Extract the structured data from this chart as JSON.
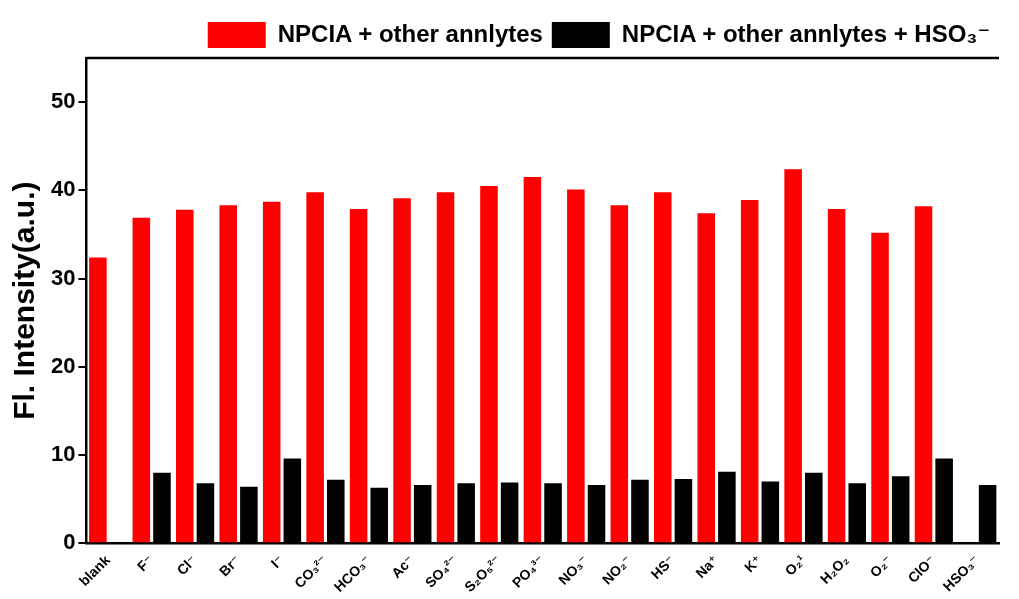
{
  "chart_data": {
    "type": "bar",
    "ylabel": "Fl. Intensity(a.u.)",
    "categories": [
      "blank",
      "F⁻",
      "Cl⁻",
      "Br⁻",
      "I⁻",
      "CO₃²⁻",
      "HCO₃⁻",
      "Ac⁻",
      "SO₄²⁻",
      "S₂O₅²⁻",
      "PO₄³⁻",
      "NO₃⁻",
      "NO₂⁻",
      "HS⁻",
      "Na⁺",
      "K⁺",
      "O₂¹",
      "H₂O₂",
      "O₂⁻",
      "ClO⁻",
      "HSO₃⁻"
    ],
    "series": [
      {
        "name": "NPCIA + other annlytes",
        "color": "#ff0000",
        "values": [
          32.4,
          36.9,
          37.8,
          38.3,
          38.7,
          39.8,
          37.9,
          39.1,
          39.8,
          40.5,
          41.5,
          40.1,
          38.3,
          39.8,
          37.4,
          38.9,
          42.4,
          37.9,
          35.2,
          38.2,
          null
        ]
      },
      {
        "name": "NPCIA + other annlytes + HSO₃⁻",
        "color": "#000000",
        "values": [
          null,
          8.0,
          6.8,
          6.4,
          9.6,
          7.2,
          6.3,
          6.6,
          6.8,
          6.9,
          6.8,
          6.6,
          7.2,
          7.3,
          8.1,
          7.0,
          8.0,
          6.8,
          7.6,
          9.6,
          6.6
        ]
      }
    ],
    "ylim": [
      0,
      55
    ],
    "yticks": [
      0,
      10,
      20,
      30,
      40,
      50
    ],
    "legend": "top right",
    "grid": false
  }
}
